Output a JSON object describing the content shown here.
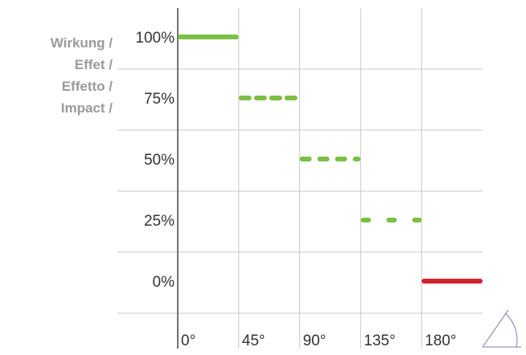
{
  "chart_data": {
    "type": "line",
    "ylabel_lines": [
      "Wirkung /",
      "Effet /",
      "Effetto /",
      "Impact /"
    ],
    "x_tick_labels": [
      "0°",
      "45°",
      "90°",
      "135°",
      "180°"
    ],
    "y_tick_labels": [
      "100%",
      "75%",
      "50%",
      "25%",
      "0%"
    ],
    "y_levels": [
      100,
      75,
      50,
      25,
      0
    ],
    "xlim": [
      0,
      225
    ],
    "ylim": [
      0,
      100
    ],
    "grid": true,
    "segments": [
      {
        "x0": 0,
        "x1": 45,
        "y": 100,
        "style": "solid",
        "color": "#7bc043"
      },
      {
        "x0": 45,
        "x1": 90,
        "y": 75,
        "style": "dashed",
        "color": "#7bc043"
      },
      {
        "x0": 90,
        "x1": 135,
        "y": 50,
        "style": "dashed",
        "color": "#7bc043"
      },
      {
        "x0": 135,
        "x1": 180,
        "y": 25,
        "style": "dashed",
        "color": "#7bc043"
      },
      {
        "x0": 180,
        "x1": 225,
        "y": 0,
        "style": "solid",
        "color": "#d2232a"
      }
    ],
    "angle_icon": "angle-protractor-icon"
  },
  "colors": {
    "grid": "#c8c8c8",
    "axis": "#444444",
    "label": "#9a9a9a",
    "tick_text": "#333333",
    "green": "#7bc043",
    "red": "#d2232a"
  }
}
